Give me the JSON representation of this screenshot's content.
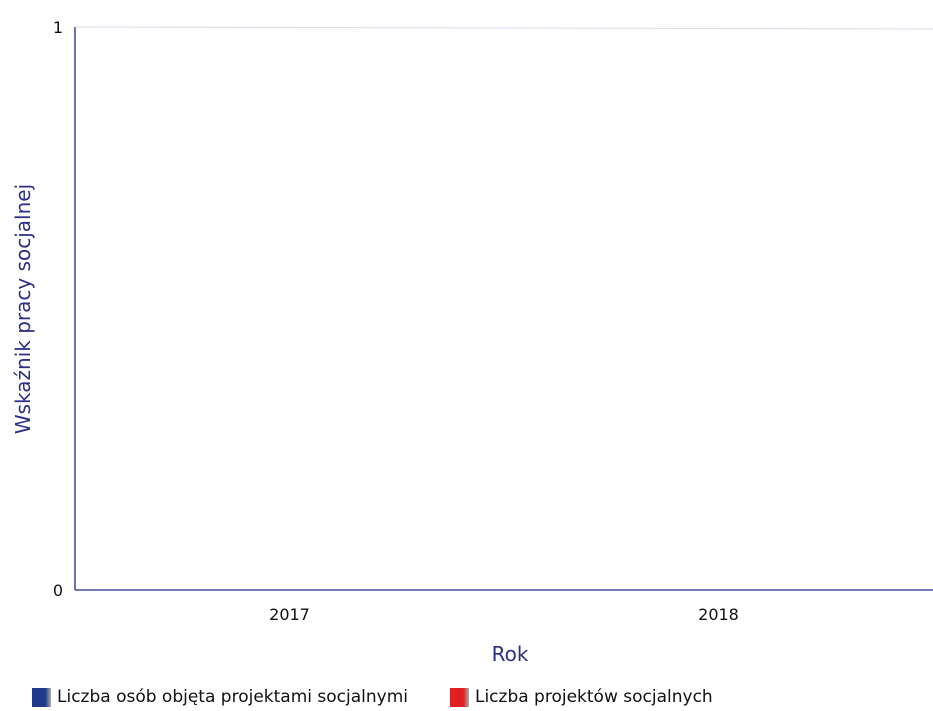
{
  "chart_data": {
    "type": "bar",
    "title": "",
    "xlabel": "Rok",
    "ylabel": "Wskaźnik pracy socjalnej",
    "categories": [
      "2017",
      "2018"
    ],
    "ylim": [
      0,
      1
    ],
    "yticks": [
      0,
      1
    ],
    "grid": false,
    "legend_position": "bottom-left",
    "series": [
      {
        "name": "Liczba osób objęta projektami socjalnymi",
        "color": "#1f3a8a",
        "values": [
          0,
          0
        ]
      },
      {
        "name": "Liczba projektów socjalnych",
        "color": "#e02020",
        "values": [
          0,
          0
        ]
      }
    ],
    "colors": {
      "axis": "#4a4fa0",
      "axis_title": "#2b2f86",
      "tick_text": "#111111"
    }
  }
}
